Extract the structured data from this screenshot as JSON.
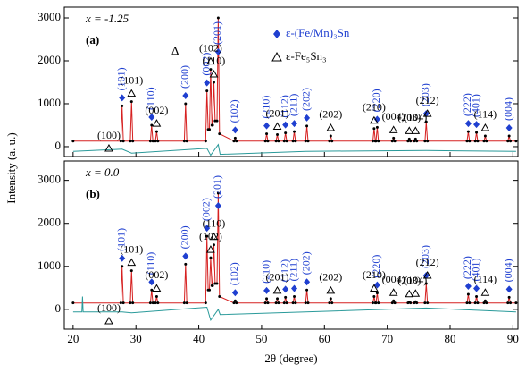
{
  "y_label": "Intensity (a. u.)",
  "x_label": "2θ (degree)",
  "xlim": [
    18.6,
    90.8
  ],
  "xticks": [
    20,
    30,
    40,
    50,
    60,
    70,
    80,
    90
  ],
  "phases": [
    {
      "name": "ε-(Fe/Mn)₃Sn",
      "color": "#1f3fd0",
      "marker": "diamond",
      "peaks": [
        {
          "x": 27.8,
          "label": "(101)"
        },
        {
          "x": 32.5,
          "label": "(110)"
        },
        {
          "x": 37.9,
          "label": "(200)"
        },
        {
          "x": 41.3,
          "label": "(002)"
        },
        {
          "x": 43.1,
          "label": "(201)"
        },
        {
          "x": 45.8,
          "label": "(102)"
        },
        {
          "x": 50.8,
          "label": "(210)"
        },
        {
          "x": 53.8,
          "label": "(112)"
        },
        {
          "x": 55.2,
          "label": "(211)"
        },
        {
          "x": 57.2,
          "label": "(202)"
        },
        {
          "x": 68.4,
          "label": "(220)"
        },
        {
          "x": 76.2,
          "label": "(203)"
        },
        {
          "x": 82.9,
          "label": "(222)"
        },
        {
          "x": 84.2,
          "label": "(401)"
        },
        {
          "x": 89.4,
          "label": "(004)"
        }
      ]
    },
    {
      "name": "ε-Fe₅Sn₃",
      "color": "#000000",
      "marker": "triangle",
      "peaks": [
        {
          "x": 25.7,
          "label": "(100)"
        },
        {
          "x": 29.3,
          "label": "(101)"
        },
        {
          "x": 33.3,
          "label": "(002)"
        },
        {
          "x": 41.9,
          "label": "(102)"
        },
        {
          "x": 42.4,
          "label": "(110)"
        },
        {
          "x": 52.5,
          "label": "(201)"
        },
        {
          "x": 61.0,
          "label": "(202)"
        },
        {
          "x": 67.9,
          "label": "(210)"
        },
        {
          "x": 71.0,
          "label": "(004)"
        },
        {
          "x": 73.5,
          "label": "(203)"
        },
        {
          "x": 74.5,
          "label": "(104)"
        },
        {
          "x": 76.4,
          "label": "(212)"
        },
        {
          "x": 85.6,
          "label": "(114)"
        }
      ]
    }
  ],
  "chart_data": [
    {
      "type": "line",
      "annotation": "x = -1.25",
      "label": "(a)",
      "note": "Δ",
      "ylim": [
        -230,
        3250
      ],
      "yticks": [
        0,
        1000,
        2000,
        3000
      ],
      "series": [
        {
          "color": "#000000",
          "line_color": "#d62020",
          "x": [
            20,
            27.6,
            27.8,
            28.0,
            29.1,
            29.3,
            29.5,
            32.3,
            32.5,
            32.7,
            33.1,
            33.3,
            33.5,
            37.7,
            37.9,
            38.1,
            41.1,
            41.3,
            41.5,
            41.7,
            41.9,
            42.1,
            42.2,
            42.4,
            42.6,
            42.9,
            43.1,
            43.3,
            45.6,
            45.8,
            46.0,
            50.6,
            50.8,
            51.0,
            52.3,
            52.5,
            52.7,
            53.6,
            53.8,
            54.0,
            55.0,
            55.2,
            55.4,
            57.0,
            57.2,
            57.4,
            60.8,
            61.0,
            61.2,
            67.7,
            67.9,
            68.1,
            68.2,
            68.4,
            68.6,
            70.8,
            71.0,
            71.2,
            73.3,
            73.5,
            73.7,
            74.3,
            74.5,
            74.7,
            76.0,
            76.2,
            76.4,
            82.7,
            82.9,
            83.1,
            84.0,
            84.2,
            84.4,
            85.4,
            85.6,
            85.8,
            89.2,
            89.4,
            89.6,
            90.5
          ],
          "values": [
            130,
            130,
            950,
            130,
            130,
            1050,
            130,
            130,
            500,
            130,
            130,
            350,
            130,
            130,
            1000,
            130,
            130,
            1300,
            400,
            400,
            1800,
            500,
            500,
            1500,
            600,
            600,
            3000,
            300,
            130,
            200,
            130,
            130,
            300,
            130,
            130,
            280,
            130,
            130,
            320,
            130,
            130,
            350,
            130,
            130,
            480,
            130,
            130,
            250,
            130,
            130,
            420,
            130,
            130,
            450,
            130,
            130,
            200,
            130,
            130,
            180,
            130,
            130,
            180,
            130,
            130,
            580,
            130,
            130,
            350,
            130,
            130,
            330,
            130,
            130,
            250,
            130,
            130,
            250,
            130,
            130
          ]
        },
        {
          "color": "#2a9a9a",
          "x": [
            20,
            27.8,
            29.3,
            41.3,
            41.9,
            43.1,
            43.4,
            57,
            76.2,
            90.5
          ],
          "values": [
            -110,
            -60,
            -150,
            -40,
            -200,
            50,
            -180,
            -110,
            -90,
            -110
          ]
        }
      ]
    },
    {
      "type": "line",
      "annotation": "x = 0.0",
      "label": "(b)",
      "ylim": [
        -460,
        3450
      ],
      "yticks": [
        0,
        1000,
        2000,
        3000
      ],
      "series": [
        {
          "color": "#000000",
          "line_color": "#d62020",
          "x": [
            20,
            27.6,
            27.8,
            28.0,
            29.1,
            29.3,
            29.5,
            32.3,
            32.5,
            32.7,
            33.1,
            33.3,
            33.5,
            37.7,
            37.9,
            38.1,
            41.1,
            41.3,
            41.5,
            41.7,
            41.9,
            42.1,
            42.2,
            42.4,
            42.6,
            42.9,
            43.1,
            43.3,
            45.6,
            45.8,
            46.0,
            50.6,
            50.8,
            51.0,
            52.3,
            52.5,
            52.7,
            53.6,
            53.8,
            54.0,
            55.0,
            55.2,
            55.4,
            57.0,
            57.2,
            57.4,
            60.8,
            61.0,
            61.2,
            67.7,
            67.9,
            68.1,
            68.2,
            68.4,
            68.6,
            70.8,
            71.0,
            71.2,
            73.3,
            73.5,
            73.7,
            74.3,
            74.5,
            74.7,
            76.0,
            76.2,
            76.4,
            82.7,
            82.9,
            83.1,
            84.0,
            84.2,
            84.4,
            85.4,
            85.6,
            85.8,
            89.2,
            89.4,
            89.6,
            90.5
          ],
          "values": [
            150,
            150,
            1000,
            150,
            150,
            900,
            150,
            150,
            450,
            150,
            150,
            300,
            150,
            150,
            1050,
            150,
            150,
            1700,
            450,
            450,
            1200,
            550,
            550,
            1500,
            600,
            600,
            2700,
            300,
            150,
            200,
            150,
            150,
            250,
            150,
            150,
            250,
            150,
            150,
            280,
            150,
            150,
            300,
            150,
            150,
            450,
            150,
            150,
            250,
            150,
            150,
            300,
            150,
            150,
            380,
            150,
            150,
            200,
            150,
            150,
            170,
            150,
            150,
            180,
            150,
            150,
            600,
            150,
            150,
            350,
            150,
            150,
            300,
            150,
            150,
            200,
            150,
            150,
            280,
            150,
            150
          ]
        },
        {
          "color": "#2a9a9a",
          "x": [
            20,
            21.4,
            21.5,
            21.6,
            27.8,
            29.3,
            41.3,
            41.9,
            43.1,
            43.4,
            57,
            76.2,
            90.5
          ],
          "values": [
            -60,
            -60,
            300,
            -60,
            -60,
            -80,
            50,
            -250,
            0,
            -120,
            -60,
            30,
            -60
          ]
        }
      ]
    }
  ]
}
